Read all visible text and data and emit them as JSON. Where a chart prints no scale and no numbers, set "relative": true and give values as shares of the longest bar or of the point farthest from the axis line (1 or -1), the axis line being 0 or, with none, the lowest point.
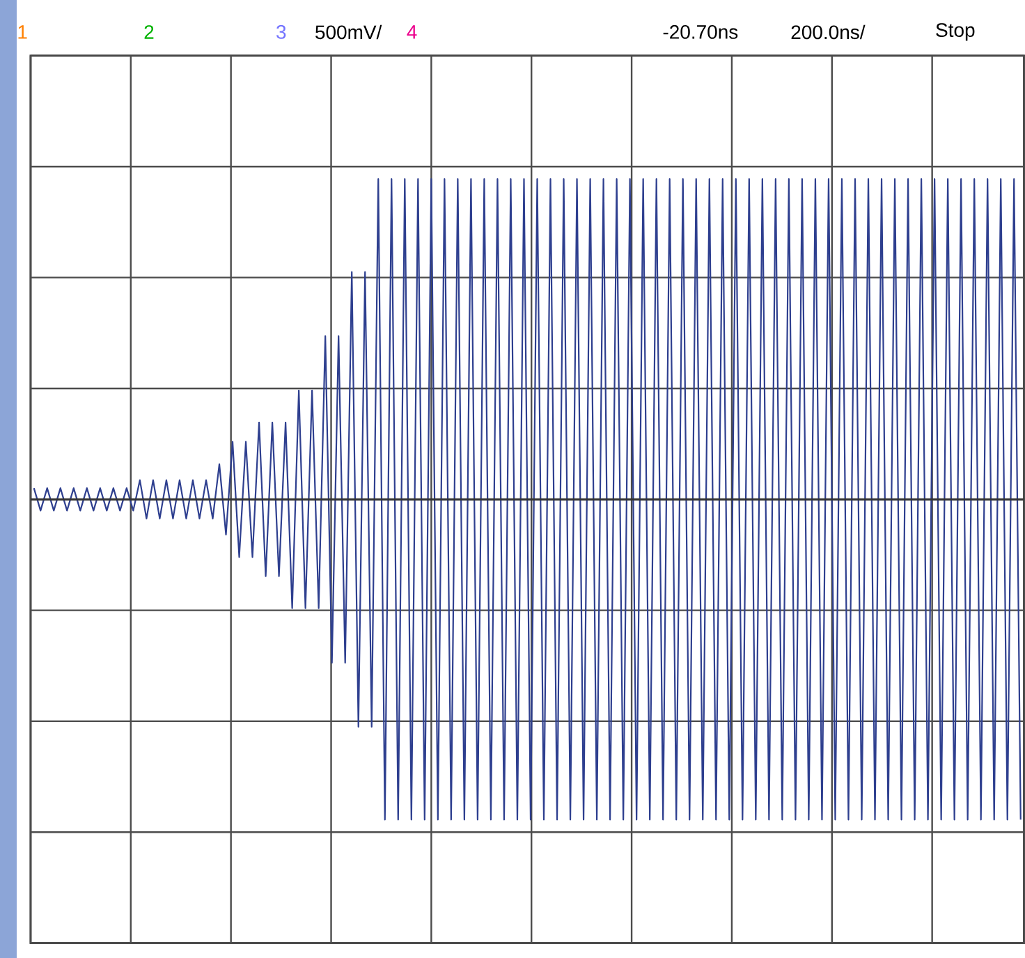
{
  "chart_data": {
    "type": "line",
    "relative": true,
    "grid": true,
    "tick_labels": false,
    "annotations": [
      "1",
      "2",
      "3",
      "500mV/",
      "4",
      "-20.70ns",
      "200.0ns/",
      "Stop"
    ],
    "categories": [
      null,
      null,
      null,
      null,
      null,
      null,
      null,
      null,
      null,
      null,
      null,
      null,
      null,
      null,
      null,
      null,
      null,
      null,
      null,
      null,
      null,
      null,
      null,
      null,
      null,
      null,
      null,
      null,
      null,
      null,
      null,
      null,
      null,
      null,
      null,
      null,
      null,
      null,
      null,
      null,
      null,
      null,
      null,
      null,
      null,
      null,
      null,
      null,
      null,
      null,
      null,
      null,
      null,
      null,
      null,
      null,
      null,
      null,
      null,
      null,
      null,
      null,
      null,
      null,
      null,
      null,
      null,
      null,
      null,
      null,
      null,
      null,
      null,
      null,
      null,
      null,
      null,
      null,
      null,
      null,
      null,
      null,
      null,
      null,
      null,
      null,
      null,
      null,
      null,
      null,
      null,
      null,
      null,
      null,
      null,
      null,
      null,
      null,
      null,
      null,
      null,
      null,
      null,
      null,
      null,
      null,
      null,
      null,
      null,
      null,
      null,
      null,
      null,
      null,
      null,
      null,
      null,
      null,
      null,
      null,
      null,
      null,
      null,
      null,
      null,
      null,
      null,
      null,
      null,
      null,
      null,
      null,
      null,
      null,
      null,
      null,
      null,
      null,
      null,
      null,
      null,
      null,
      null,
      null,
      null,
      null,
      null,
      null,
      null,
      null
    ],
    "series": [
      {
        "color": "#2e3f8f",
        "values": [
          0.035,
          -0.035,
          0.035,
          -0.035,
          0.035,
          -0.035,
          0.035,
          -0.035,
          0.035,
          -0.035,
          0.035,
          -0.035,
          0.035,
          -0.035,
          0.035,
          -0.035,
          0.06,
          -0.06,
          0.06,
          -0.06,
          0.06,
          -0.06,
          0.06,
          -0.06,
          0.06,
          -0.06,
          0.06,
          -0.06,
          0.11,
          -0.11,
          0.18,
          -0.18,
          0.18,
          -0.18,
          0.24,
          -0.24,
          0.24,
          -0.24,
          0.24,
          -0.34,
          0.34,
          -0.34,
          0.34,
          -0.34,
          0.51,
          -0.51,
          0.51,
          -0.51,
          0.71,
          -0.71,
          0.71,
          -0.71,
          1,
          -1,
          1,
          -1,
          1,
          -1,
          1,
          -1,
          1,
          -1,
          1,
          -1,
          1,
          -1,
          1,
          -1,
          1,
          -1,
          1,
          -1,
          1,
          -1,
          1,
          -1,
          1,
          -1,
          1,
          -1,
          1,
          -1,
          1,
          -1,
          1,
          -1,
          1,
          -1,
          1,
          -1,
          1,
          -1,
          1,
          -1,
          1,
          -1,
          1,
          -1,
          1,
          -1,
          1,
          -1,
          1,
          -1,
          1,
          -1,
          1,
          -1,
          1,
          -1,
          1,
          -1,
          1,
          -1,
          1,
          -1,
          1,
          -1,
          1,
          -1,
          1,
          -1,
          1,
          -1,
          1,
          -1,
          1,
          -1,
          1,
          -1,
          1,
          -1,
          1,
          -1,
          1,
          -1,
          1,
          -1,
          1,
          -1,
          1,
          -1,
          1,
          -1,
          1,
          -1,
          1,
          -1,
          1,
          -1
        ]
      }
    ]
  }
}
